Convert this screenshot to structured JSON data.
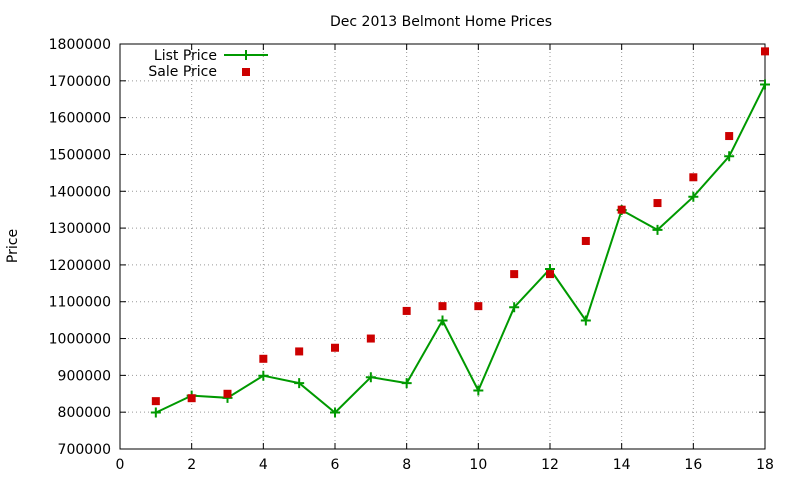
{
  "chart_data": {
    "type": "line",
    "title": "Dec 2013 Belmont Home Prices",
    "xlabel": "",
    "ylabel": "Price",
    "xlim": [
      0,
      18
    ],
    "ylim": [
      700000,
      1800000
    ],
    "xticks": [
      0,
      2,
      4,
      6,
      8,
      10,
      12,
      14,
      16,
      18
    ],
    "yticks": [
      700000,
      800000,
      900000,
      1000000,
      1100000,
      1200000,
      1300000,
      1400000,
      1500000,
      1600000,
      1700000,
      1800000
    ],
    "grid": true,
    "legend_position": "top-left",
    "series": [
      {
        "name": "List Price",
        "style": "line+cross",
        "color": "#009900",
        "x": [
          1,
          2,
          3,
          4,
          5,
          6,
          7,
          8,
          9,
          10,
          11,
          12,
          13,
          14,
          15,
          16,
          17,
          18
        ],
        "y": [
          799000,
          845000,
          839000,
          899000,
          879000,
          799000,
          895000,
          879000,
          1049000,
          859000,
          1085000,
          1189000,
          1049000,
          1349000,
          1295000,
          1385000,
          1495000,
          1690000
        ]
      },
      {
        "name": "Sale Price",
        "style": "square-markers",
        "color": "#cc0000",
        "x": [
          1,
          2,
          3,
          4,
          5,
          6,
          7,
          8,
          9,
          10,
          11,
          12,
          13,
          14,
          15,
          16,
          17,
          18
        ],
        "y": [
          830000,
          838000,
          850000,
          945000,
          965000,
          975000,
          1000000,
          1075000,
          1088000,
          1088000,
          1175000,
          1175000,
          1265000,
          1350000,
          1368000,
          1438000,
          1550000,
          1780000
        ]
      }
    ]
  }
}
